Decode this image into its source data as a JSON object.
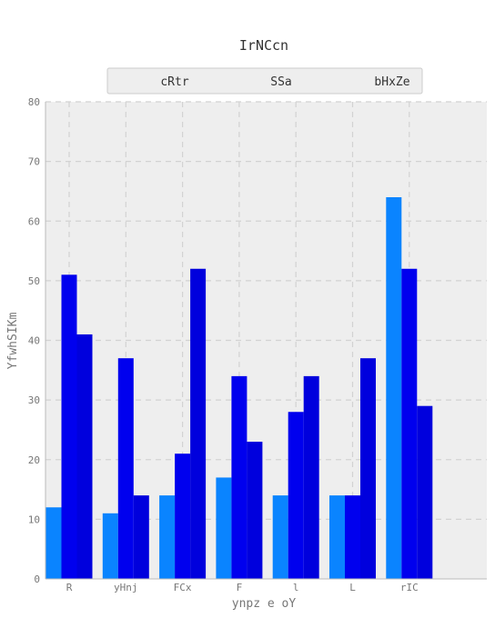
{
  "chart_data": {
    "type": "bar",
    "title": "IrNCcn",
    "xlabel": "ynpz e oY",
    "ylabel": "YfwhSIKm",
    "categories": [
      "R",
      "yHnj",
      "FCx",
      "F",
      "l",
      "L",
      "rIC"
    ],
    "series": [
      {
        "name": "cRtr",
        "values": [
          12,
          11,
          14,
          17,
          14,
          14,
          64
        ],
        "color": "#0a84ff"
      },
      {
        "name": "SSa",
        "values": [
          51,
          37,
          21,
          34,
          28,
          14,
          52
        ],
        "color": "#0000ee"
      },
      {
        "name": "bHxZe",
        "values": [
          41,
          14,
          52,
          23,
          34,
          37,
          29
        ],
        "color": "#0000dd"
      }
    ],
    "ylim": [
      0,
      80
    ],
    "yticks": [
      0,
      10,
      20,
      30,
      40,
      50,
      60,
      70,
      80
    ],
    "grid": true,
    "legend_position": "top"
  }
}
